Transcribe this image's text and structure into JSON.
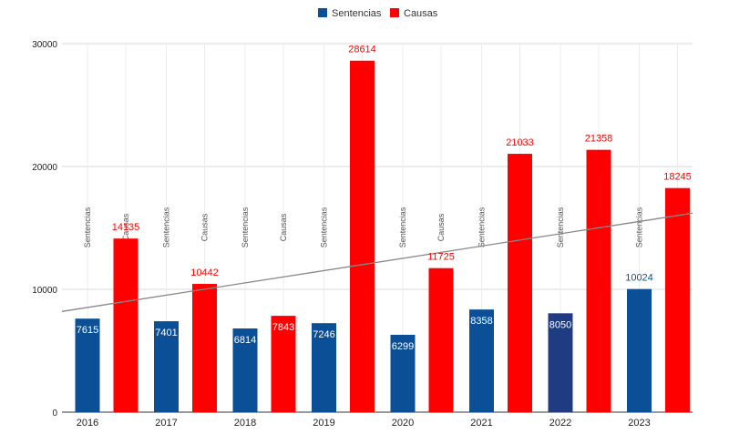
{
  "chart_data": {
    "type": "bar",
    "title": "",
    "xlabel": "",
    "ylabel": "",
    "categories": [
      "2016",
      "2017",
      "2018",
      "2019",
      "2020",
      "2021",
      "2022",
      "2023"
    ],
    "series": [
      {
        "name": "Sentencias",
        "color": "#0b4f96",
        "values": [
          7615,
          7401,
          6814,
          7246,
          6299,
          8358,
          8050,
          10024
        ],
        "point_colors": [
          "#0b4f96",
          "#0b4f96",
          "#0b4f96",
          "#0b4f96",
          "#0b4f96",
          "#0b4f96",
          "#1f3c83",
          "#0b4f96"
        ],
        "label_position": [
          "inside",
          "inside",
          "inside",
          "inside",
          "inside",
          "inside",
          "inside",
          "above"
        ]
      },
      {
        "name": "Causas",
        "color": "#ff0000",
        "values": [
          14135,
          10442,
          7843,
          28614,
          11725,
          21033,
          21358,
          18245
        ],
        "label_position": [
          "above",
          "above",
          "inside",
          "above",
          "above",
          "above",
          "above",
          "above"
        ]
      }
    ],
    "ylim": [
      0,
      30000
    ],
    "yticks": [
      0,
      10000,
      20000,
      30000
    ],
    "grid": true,
    "legend": "top-center",
    "vertical_labels": [
      "Sentencias",
      "Causas",
      "Sentencias",
      "Causas",
      "Sentencias",
      "Causas",
      "Sentencias",
      "Causas",
      "Sentencias",
      "Causas",
      "Sentencias",
      "Causas",
      "Sentencias",
      "Causas",
      "Sentencias",
      "Causas"
    ],
    "trendline": {
      "color": "#888888",
      "start_value": 8200,
      "end_value": 16200
    }
  }
}
